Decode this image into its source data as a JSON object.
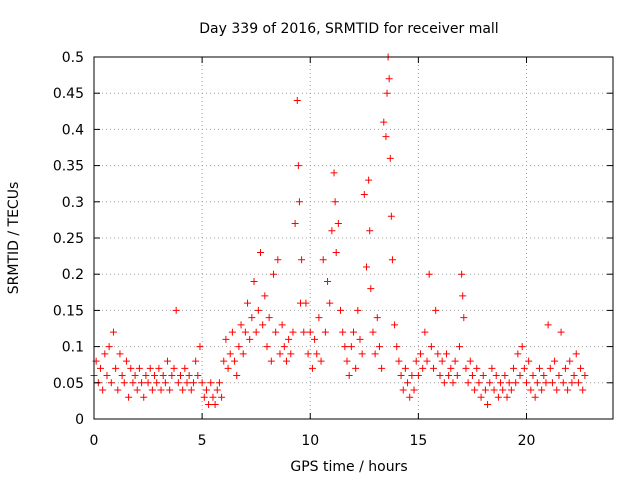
{
  "chart_data": {
    "type": "scatter",
    "title": "Day 339 of 2016, SRMTID for receiver mall",
    "xlabel": "GPS time / hours",
    "ylabel": "SRMTID / TECUs",
    "xlim": [
      0,
      24
    ],
    "ylim": [
      0,
      0.5
    ],
    "x_ticks": [
      0,
      5,
      10,
      15,
      20
    ],
    "y_ticks": [
      "0",
      "0.05",
      "0.1",
      "0.15",
      "0.2",
      "0.25",
      "0.3",
      "0.35",
      "0.4",
      "0.45",
      "0.5"
    ],
    "grid": true,
    "marker": "plus",
    "color": "#ff0000",
    "series": [
      {
        "points": [
          [
            0.0,
            0.06
          ],
          [
            0.1,
            0.08
          ],
          [
            0.2,
            0.05
          ],
          [
            0.3,
            0.07
          ],
          [
            0.4,
            0.04
          ],
          [
            0.5,
            0.09
          ],
          [
            0.6,
            0.06
          ],
          [
            0.7,
            0.1
          ],
          [
            0.8,
            0.05
          ],
          [
            0.9,
            0.12
          ],
          [
            1.0,
            0.07
          ],
          [
            1.1,
            0.04
          ],
          [
            1.2,
            0.09
          ],
          [
            1.3,
            0.06
          ],
          [
            1.4,
            0.05
          ],
          [
            1.5,
            0.08
          ],
          [
            1.6,
            0.03
          ],
          [
            1.7,
            0.07
          ],
          [
            1.8,
            0.05
          ],
          [
            1.9,
            0.06
          ],
          [
            2.0,
            0.04
          ],
          [
            2.1,
            0.07
          ],
          [
            2.2,
            0.05
          ],
          [
            2.3,
            0.03
          ],
          [
            2.4,
            0.06
          ],
          [
            2.5,
            0.05
          ],
          [
            2.6,
            0.07
          ],
          [
            2.7,
            0.04
          ],
          [
            2.8,
            0.06
          ],
          [
            2.9,
            0.05
          ],
          [
            3.0,
            0.07
          ],
          [
            3.1,
            0.04
          ],
          [
            3.2,
            0.06
          ],
          [
            3.3,
            0.05
          ],
          [
            3.4,
            0.08
          ],
          [
            3.5,
            0.04
          ],
          [
            3.6,
            0.06
          ],
          [
            3.7,
            0.07
          ],
          [
            3.8,
            0.15
          ],
          [
            3.9,
            0.05
          ],
          [
            4.0,
            0.06
          ],
          [
            4.1,
            0.04
          ],
          [
            4.2,
            0.07
          ],
          [
            4.3,
            0.05
          ],
          [
            4.4,
            0.06
          ],
          [
            4.5,
            0.04
          ],
          [
            4.6,
            0.05
          ],
          [
            4.7,
            0.08
          ],
          [
            4.8,
            0.06
          ],
          [
            4.9,
            0.1
          ],
          [
            5.0,
            0.05
          ],
          [
            5.1,
            0.03
          ],
          [
            5.2,
            0.04
          ],
          [
            5.3,
            0.02
          ],
          [
            5.4,
            0.05
          ],
          [
            5.5,
            0.03
          ],
          [
            5.6,
            0.02
          ],
          [
            5.7,
            0.04
          ],
          [
            5.8,
            0.05
          ],
          [
            5.9,
            0.03
          ],
          [
            6.0,
            0.08
          ],
          [
            6.1,
            0.11
          ],
          [
            6.2,
            0.07
          ],
          [
            6.3,
            0.09
          ],
          [
            6.4,
            0.12
          ],
          [
            6.5,
            0.08
          ],
          [
            6.6,
            0.06
          ],
          [
            6.7,
            0.1
          ],
          [
            6.8,
            0.13
          ],
          [
            6.9,
            0.09
          ],
          [
            7.0,
            0.12
          ],
          [
            7.1,
            0.16
          ],
          [
            7.2,
            0.11
          ],
          [
            7.3,
            0.14
          ],
          [
            7.4,
            0.19
          ],
          [
            7.5,
            0.12
          ],
          [
            7.6,
            0.15
          ],
          [
            7.7,
            0.23
          ],
          [
            7.8,
            0.13
          ],
          [
            7.9,
            0.17
          ],
          [
            8.0,
            0.1
          ],
          [
            8.1,
            0.14
          ],
          [
            8.2,
            0.08
          ],
          [
            8.3,
            0.2
          ],
          [
            8.4,
            0.12
          ],
          [
            8.5,
            0.22
          ],
          [
            8.6,
            0.09
          ],
          [
            8.7,
            0.13
          ],
          [
            8.8,
            0.1
          ],
          [
            8.9,
            0.08
          ],
          [
            9.0,
            0.11
          ],
          [
            9.1,
            0.09
          ],
          [
            9.2,
            0.12
          ],
          [
            9.3,
            0.27
          ],
          [
            9.4,
            0.44
          ],
          [
            9.45,
            0.35
          ],
          [
            9.5,
            0.3
          ],
          [
            9.55,
            0.16
          ],
          [
            9.6,
            0.22
          ],
          [
            9.7,
            0.12
          ],
          [
            9.8,
            0.16
          ],
          [
            9.9,
            0.09
          ],
          [
            10.0,
            0.12
          ],
          [
            10.1,
            0.07
          ],
          [
            10.2,
            0.11
          ],
          [
            10.3,
            0.09
          ],
          [
            10.4,
            0.14
          ],
          [
            10.5,
            0.08
          ],
          [
            10.6,
            0.22
          ],
          [
            10.7,
            0.12
          ],
          [
            10.8,
            0.19
          ],
          [
            10.9,
            0.16
          ],
          [
            11.0,
            0.26
          ],
          [
            11.1,
            0.34
          ],
          [
            11.15,
            0.3
          ],
          [
            11.2,
            0.23
          ],
          [
            11.3,
            0.27
          ],
          [
            11.4,
            0.15
          ],
          [
            11.5,
            0.12
          ],
          [
            11.6,
            0.1
          ],
          [
            11.7,
            0.08
          ],
          [
            11.8,
            0.06
          ],
          [
            11.9,
            0.1
          ],
          [
            12.0,
            0.12
          ],
          [
            12.1,
            0.07
          ],
          [
            12.2,
            0.15
          ],
          [
            12.3,
            0.11
          ],
          [
            12.4,
            0.09
          ],
          [
            12.5,
            0.31
          ],
          [
            12.6,
            0.21
          ],
          [
            12.7,
            0.33
          ],
          [
            12.75,
            0.26
          ],
          [
            12.8,
            0.18
          ],
          [
            12.9,
            0.12
          ],
          [
            13.0,
            0.09
          ],
          [
            13.1,
            0.14
          ],
          [
            13.2,
            0.1
          ],
          [
            13.3,
            0.07
          ],
          [
            13.4,
            0.41
          ],
          [
            13.5,
            0.39
          ],
          [
            13.55,
            0.45
          ],
          [
            13.6,
            0.5
          ],
          [
            13.65,
            0.47
          ],
          [
            13.7,
            0.36
          ],
          [
            13.75,
            0.28
          ],
          [
            13.8,
            0.22
          ],
          [
            13.9,
            0.13
          ],
          [
            14.0,
            0.1
          ],
          [
            14.1,
            0.08
          ],
          [
            14.2,
            0.06
          ],
          [
            14.3,
            0.04
          ],
          [
            14.4,
            0.07
          ],
          [
            14.5,
            0.05
          ],
          [
            14.6,
            0.03
          ],
          [
            14.7,
            0.06
          ],
          [
            14.8,
            0.04
          ],
          [
            14.9,
            0.08
          ],
          [
            15.0,
            0.06
          ],
          [
            15.1,
            0.09
          ],
          [
            15.2,
            0.07
          ],
          [
            15.3,
            0.12
          ],
          [
            15.4,
            0.08
          ],
          [
            15.5,
            0.2
          ],
          [
            15.6,
            0.1
          ],
          [
            15.7,
            0.07
          ],
          [
            15.8,
            0.15
          ],
          [
            15.9,
            0.09
          ],
          [
            16.0,
            0.06
          ],
          [
            16.1,
            0.08
          ],
          [
            16.2,
            0.05
          ],
          [
            16.3,
            0.09
          ],
          [
            16.4,
            0.06
          ],
          [
            16.5,
            0.07
          ],
          [
            16.6,
            0.05
          ],
          [
            16.7,
            0.08
          ],
          [
            16.8,
            0.06
          ],
          [
            16.9,
            0.1
          ],
          [
            17.0,
            0.2
          ],
          [
            17.05,
            0.17
          ],
          [
            17.1,
            0.14
          ],
          [
            17.2,
            0.07
          ],
          [
            17.3,
            0.05
          ],
          [
            17.4,
            0.08
          ],
          [
            17.5,
            0.06
          ],
          [
            17.6,
            0.04
          ],
          [
            17.7,
            0.07
          ],
          [
            17.8,
            0.05
          ],
          [
            17.9,
            0.03
          ],
          [
            18.0,
            0.06
          ],
          [
            18.1,
            0.04
          ],
          [
            18.2,
            0.02
          ],
          [
            18.3,
            0.05
          ],
          [
            18.4,
            0.07
          ],
          [
            18.5,
            0.04
          ],
          [
            18.6,
            0.06
          ],
          [
            18.7,
            0.03
          ],
          [
            18.8,
            0.05
          ],
          [
            18.9,
            0.04
          ],
          [
            19.0,
            0.06
          ],
          [
            19.1,
            0.03
          ],
          [
            19.2,
            0.05
          ],
          [
            19.3,
            0.04
          ],
          [
            19.4,
            0.07
          ],
          [
            19.5,
            0.05
          ],
          [
            19.6,
            0.09
          ],
          [
            19.7,
            0.06
          ],
          [
            19.8,
            0.1
          ],
          [
            19.9,
            0.07
          ],
          [
            20.0,
            0.05
          ],
          [
            20.1,
            0.08
          ],
          [
            20.2,
            0.04
          ],
          [
            20.3,
            0.06
          ],
          [
            20.4,
            0.03
          ],
          [
            20.5,
            0.05
          ],
          [
            20.6,
            0.07
          ],
          [
            20.7,
            0.04
          ],
          [
            20.8,
            0.06
          ],
          [
            20.9,
            0.05
          ],
          [
            21.0,
            0.13
          ],
          [
            21.1,
            0.07
          ],
          [
            21.2,
            0.05
          ],
          [
            21.3,
            0.08
          ],
          [
            21.4,
            0.04
          ],
          [
            21.5,
            0.06
          ],
          [
            21.6,
            0.12
          ],
          [
            21.7,
            0.05
          ],
          [
            21.8,
            0.07
          ],
          [
            21.9,
            0.04
          ],
          [
            22.0,
            0.08
          ],
          [
            22.1,
            0.05
          ],
          [
            22.2,
            0.06
          ],
          [
            22.3,
            0.09
          ],
          [
            22.4,
            0.05
          ],
          [
            22.5,
            0.07
          ],
          [
            22.6,
            0.04
          ],
          [
            22.7,
            0.06
          ]
        ]
      }
    ]
  }
}
